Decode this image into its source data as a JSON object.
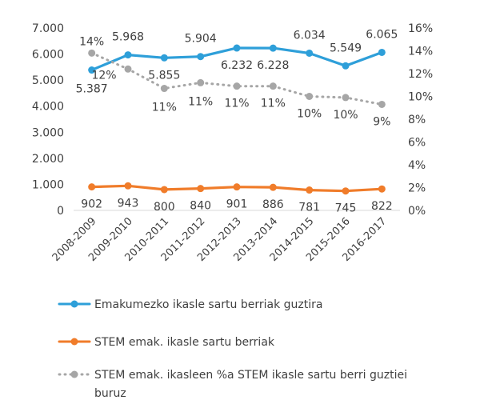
{
  "chart_data": {
    "type": "line",
    "categories": [
      "2008-2009",
      "2009-2010",
      "2010-2011",
      "2011-2012",
      "2012-2013",
      "2013-2014",
      "2014-2015",
      "2015-2016",
      "2016-2017"
    ],
    "y_left": {
      "ylim": [
        0,
        7000
      ],
      "ticks": [
        "0",
        "1.000",
        "2.000",
        "3.000",
        "4.000",
        "5.000",
        "6.000",
        "7.000"
      ]
    },
    "y_right": {
      "ylim": [
        0,
        16
      ],
      "ticks": [
        "0%",
        "2%",
        "4%",
        "6%",
        "8%",
        "10%",
        "12%",
        "14%",
        "16%"
      ]
    },
    "grid": false,
    "legend_position": "bottom",
    "series": [
      {
        "name": "Emakumezko ikasle sartu berriak guztira",
        "axis": "left",
        "color": "#2e9fd9",
        "style": "solid",
        "values": [
          5387,
          5968,
          5855,
          5904,
          6232,
          6228,
          6034,
          5549,
          6065
        ],
        "labels": [
          "5.387",
          "5.968",
          "5.855",
          "5.904",
          "6.232",
          "6.228",
          "6.034",
          "5.549",
          "6.065"
        ]
      },
      {
        "name": "STEM emak. ikasle sartu berriak",
        "axis": "left",
        "color": "#f07c2a",
        "style": "solid",
        "values": [
          902,
          943,
          800,
          840,
          901,
          886,
          781,
          745,
          822
        ],
        "labels": [
          "902",
          "943",
          "800",
          "840",
          "901",
          "886",
          "781",
          "745",
          "822"
        ]
      },
      {
        "name_lines": [
          "STEM emak. ikasleen %a STEM ikasle sartu berri guztiei",
          "buruz"
        ],
        "axis": "right",
        "color": "#a6a6a6",
        "style": "dotted",
        "values": [
          13.8,
          12.4,
          10.7,
          11.2,
          10.9,
          10.9,
          10.0,
          9.9,
          9.3
        ],
        "labels": [
          "14%",
          "12%",
          "11%",
          "11%",
          "11%",
          "11%",
          "10%",
          "10%",
          "9%"
        ]
      }
    ]
  }
}
